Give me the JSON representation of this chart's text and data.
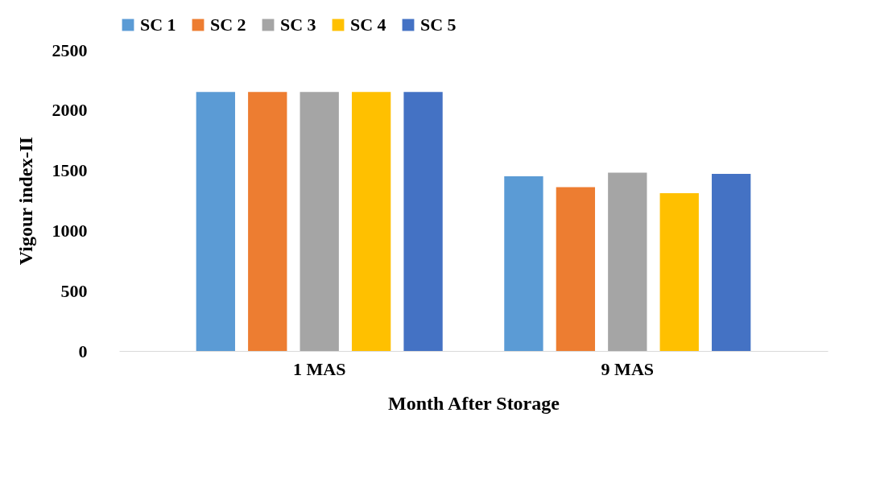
{
  "chart_data": {
    "type": "bar",
    "xlabel": "Month After Storage",
    "ylabel": "Vigour index-II",
    "categories": [
      "1 MAS",
      "9 MAS"
    ],
    "series": [
      {
        "name": "SC 1",
        "color": "#5b9bd5",
        "values": [
          2150,
          1450
        ]
      },
      {
        "name": "SC 2",
        "color": "#ed7d31",
        "values": [
          2150,
          1360
        ]
      },
      {
        "name": "SC 3",
        "color": "#a5a5a5",
        "values": [
          2150,
          1480
        ]
      },
      {
        "name": "SC 4",
        "color": "#ffc000",
        "values": [
          2150,
          1310
        ]
      },
      {
        "name": "SC 5",
        "color": "#4472c4",
        "values": [
          2150,
          1470
        ]
      }
    ],
    "ylim": [
      0,
      2500
    ],
    "yticks": [
      0,
      500,
      1000,
      1500,
      2000,
      2500
    ],
    "grid": false,
    "legend": "top"
  }
}
